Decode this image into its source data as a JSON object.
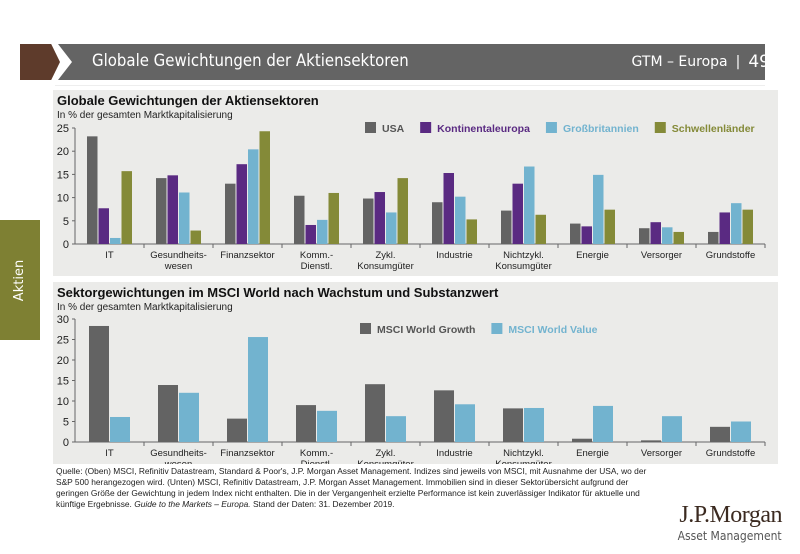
{
  "header": {
    "title": "Globale Gewichtungen der Aktiensektoren",
    "section": "GTM – Europa",
    "page": "49"
  },
  "side_tab": "Aktien",
  "colors": {
    "usa": "#636363",
    "ke": "#5a2a82",
    "gb": "#72b3cf",
    "em": "#848a38",
    "growth": "#636363",
    "value": "#72b3cf"
  },
  "chart_data": [
    {
      "type": "bar",
      "title": "Globale Gewichtungen der Aktiensektoren",
      "subtitle": "In % der gesamten Marktkapitalisierung",
      "ylim": [
        0,
        25
      ],
      "yticks": [
        0,
        5,
        10,
        15,
        20,
        25
      ],
      "legend": "top-right",
      "categories": [
        "IT",
        "Gesundheits-\nwesen",
        "Finanzsektor",
        "Komm.-\nDienstl.",
        "Zykl.\nKonsumgüter",
        "Industrie",
        "Nichtzykl.\nKonsumgüter",
        "Energie",
        "Versorger",
        "Grundstoffe"
      ],
      "series": [
        {
          "name": "USA",
          "color": "#636363",
          "values": [
            23.2,
            14.2,
            13.0,
            10.4,
            9.8,
            9.0,
            7.2,
            4.4,
            3.4,
            2.6
          ]
        },
        {
          "name": "Kontinentaleuropa",
          "color": "#5a2a82",
          "values": [
            7.7,
            14.8,
            17.2,
            4.1,
            11.2,
            15.3,
            13.0,
            3.8,
            4.7,
            6.8
          ]
        },
        {
          "name": "Großbritannien",
          "color": "#72b3cf",
          "values": [
            1.3,
            11.1,
            20.4,
            5.2,
            6.8,
            10.2,
            16.7,
            14.9,
            3.6,
            8.8
          ]
        },
        {
          "name": "Schwellenländer",
          "color": "#848a38",
          "values": [
            15.7,
            2.9,
            24.3,
            11.0,
            14.2,
            5.3,
            6.3,
            7.4,
            2.6,
            7.4
          ]
        }
      ]
    },
    {
      "type": "bar",
      "title": "Sektorgewichtungen im MSCI World nach Wachstum und Substanzwert",
      "subtitle": "In % der gesamten Marktkapitalisierung",
      "ylim": [
        0,
        30
      ],
      "yticks": [
        0,
        5,
        10,
        15,
        20,
        25,
        30
      ],
      "legend": "top-center",
      "categories": [
        "IT",
        "Gesundheits-\nwesen",
        "Finanzsektor",
        "Komm.-\nDienstl.",
        "Zykl.\nKonsumgüter",
        "Industrie",
        "Nichtzykl.\nKonsumgüter",
        "Energie",
        "Versorger",
        "Grundstoffe"
      ],
      "series": [
        {
          "name": "MSCI World Growth",
          "color": "#636363",
          "values": [
            28.3,
            13.9,
            5.7,
            9.0,
            14.1,
            12.6,
            8.2,
            0.8,
            0.4,
            3.7
          ]
        },
        {
          "name": "MSCI World Value",
          "color": "#72b3cf",
          "values": [
            6.1,
            12.0,
            25.6,
            7.6,
            6.3,
            9.2,
            8.3,
            8.8,
            6.3,
            5.0
          ]
        }
      ]
    }
  ],
  "source": "Quelle: (Oben) MSCI, Refinitiv Datastream, Standard & Poor's, J.P. Morgan Asset Management. Indizes sind jeweils von MSCI, mit Ausnahme der USA, wo der S&P 500 herangezogen wird. (Unten) MSCI, Refinitiv Datastream, J.P. Morgan Asset Management. Immobilien sind in dieser Sektorübersicht aufgrund der geringen Größe der Gewichtung in jedem Index nicht enthalten. Die in der Vergangenheit erzielte Performance ist kein zuverlässiger Indikator für aktuelle und künftige Ergebnisse.",
  "source_italic": "Guide to the Markets – Europa.",
  "source_date": "Stand der Daten: 31. Dezember 2019.",
  "logo": {
    "line1": "J.P.Morgan",
    "line2": "Asset Management"
  }
}
